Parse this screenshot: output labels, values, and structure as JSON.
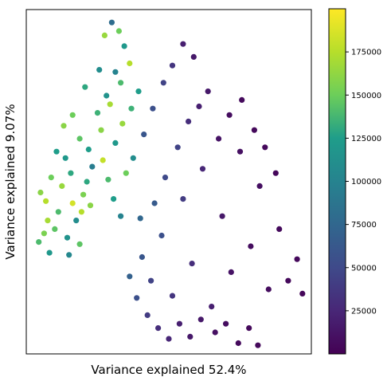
{
  "chart_data": {
    "type": "scatter",
    "xlabel": "Variance explained 52.4%",
    "ylabel": "Variance explained 9.07%",
    "xticks": [],
    "yticks": [],
    "grid": false,
    "legend": "none",
    "colorbar": {
      "colormap": "viridis",
      "range": [
        0,
        200000
      ],
      "ticks": [
        25000,
        50000,
        75000,
        100000,
        125000,
        150000,
        175000
      ],
      "tick_labels": [
        "25000",
        "50000",
        "75000",
        "100000",
        "125000",
        "150000",
        "175000"
      ],
      "stops": [
        "#440154",
        "#482777",
        "#3f4a8a",
        "#31678e",
        "#26838f",
        "#1f9d8a",
        "#6cce5a",
        "#b6de2b",
        "#fee825"
      ]
    },
    "xlim": [
      -4,
      12
    ],
    "ylim": [
      -6,
      10
    ],
    "series": [
      {
        "description": "high-value cluster, dense on left",
        "center": [
          0,
          2
        ],
        "spread": [
          1.4,
          1.6
        ],
        "points": [
          [
            -3.2,
            1.5,
            160000
          ],
          [
            -2.9,
            1.1,
            175000
          ],
          [
            -2.6,
            2.2,
            150000
          ],
          [
            -2.2,
            0.6,
            140000
          ],
          [
            -2.0,
            1.8,
            165000
          ],
          [
            -1.8,
            3.1,
            120000
          ],
          [
            -1.5,
            2.4,
            130000
          ],
          [
            -1.2,
            0.2,
            110000
          ],
          [
            -1.0,
            4.0,
            145000
          ],
          [
            -0.8,
            1.4,
            155000
          ],
          [
            -0.5,
            3.5,
            125000
          ],
          [
            -0.3,
            2.7,
            95000
          ],
          [
            0.0,
            5.2,
            135000
          ],
          [
            0.2,
            4.4,
            160000
          ],
          [
            0.5,
            6.0,
            115000
          ],
          [
            0.7,
            5.6,
            170000
          ],
          [
            1.0,
            7.1,
            100000
          ],
          [
            1.3,
            6.6,
            140000
          ],
          [
            1.5,
            8.3,
            120000
          ],
          [
            1.8,
            7.5,
            175000
          ],
          [
            0.4,
            8.8,
            165000
          ],
          [
            0.8,
            9.4,
            80000
          ],
          [
            1.2,
            9.0,
            150000
          ],
          [
            -2.4,
            -0.2,
            145000
          ],
          [
            -1.7,
            -0.6,
            115000
          ],
          [
            -2.8,
            0.2,
            170000
          ],
          [
            -3.0,
            -0.4,
            155000
          ],
          [
            -1.4,
            1.0,
            185000
          ],
          [
            -0.9,
            0.6,
            175000
          ],
          [
            -0.6,
            2.0,
            130000
          ],
          [
            -2.3,
            3.4,
            125000
          ],
          [
            -1.9,
            4.6,
            160000
          ],
          [
            -1.4,
            5.1,
            150000
          ],
          [
            -0.7,
            6.4,
            130000
          ],
          [
            0.1,
            7.2,
            110000
          ],
          [
            0.3,
            3.0,
            180000
          ],
          [
            0.6,
            2.1,
            140000
          ],
          [
            1.0,
            3.8,
            120000
          ],
          [
            1.4,
            4.7,
            165000
          ],
          [
            1.9,
            5.4,
            135000
          ],
          [
            2.3,
            6.2,
            125000
          ],
          [
            2.0,
            3.1,
            110000
          ],
          [
            1.6,
            2.4,
            150000
          ],
          [
            -3.3,
            -0.8,
            140000
          ],
          [
            -2.7,
            -1.3,
            120000
          ],
          [
            -1.6,
            -1.4,
            105000
          ],
          [
            -1.0,
            -0.9,
            145000
          ],
          [
            -0.4,
            0.9,
            160000
          ],
          [
            0.9,
            1.2,
            125000
          ],
          [
            1.3,
            0.4,
            100000
          ]
        ]
      },
      {
        "description": "low-value spread toward right",
        "center": [
          5,
          -1
        ],
        "spread": [
          3,
          3
        ],
        "points": [
          [
            2.5,
            -1.5,
            60000
          ],
          [
            3.0,
            -2.6,
            45000
          ],
          [
            3.6,
            -0.5,
            55000
          ],
          [
            4.2,
            -3.3,
            35000
          ],
          [
            4.8,
            1.2,
            40000
          ],
          [
            5.3,
            -1.8,
            30000
          ],
          [
            5.9,
            2.6,
            25000
          ],
          [
            6.4,
            -3.8,
            20000
          ],
          [
            7.0,
            0.4,
            15000
          ],
          [
            7.5,
            -2.2,
            12000
          ],
          [
            8.0,
            3.4,
            10000
          ],
          [
            8.6,
            -1.0,
            8000
          ],
          [
            9.1,
            1.8,
            9000
          ],
          [
            9.6,
            -3.0,
            7000
          ],
          [
            10.2,
            -0.2,
            6000
          ],
          [
            10.7,
            -2.6,
            5000
          ],
          [
            11.2,
            -1.6,
            5000
          ],
          [
            11.5,
            -3.2,
            4000
          ],
          [
            3.2,
            1.0,
            65000
          ],
          [
            3.8,
            2.2,
            50000
          ],
          [
            4.5,
            3.6,
            45000
          ],
          [
            5.1,
            4.8,
            30000
          ],
          [
            5.7,
            5.5,
            20000
          ],
          [
            6.2,
            6.2,
            15000
          ],
          [
            6.8,
            4.0,
            12000
          ],
          [
            7.4,
            5.1,
            8000
          ],
          [
            8.1,
            5.8,
            6000
          ],
          [
            8.8,
            4.4,
            5000
          ],
          [
            9.4,
            3.6,
            5000
          ],
          [
            10.0,
            2.4,
            4000
          ],
          [
            2.2,
            -3.4,
            55000
          ],
          [
            2.8,
            -4.2,
            40000
          ],
          [
            3.4,
            -4.8,
            30000
          ],
          [
            4.0,
            -5.3,
            25000
          ],
          [
            4.6,
            -4.6,
            20000
          ],
          [
            5.2,
            -5.2,
            15000
          ],
          [
            5.8,
            -4.4,
            15000
          ],
          [
            6.6,
            -5.0,
            10000
          ],
          [
            7.2,
            -4.6,
            8000
          ],
          [
            7.9,
            -5.5,
            6000
          ],
          [
            8.5,
            -4.8,
            5000
          ],
          [
            9.0,
            -5.6,
            5000
          ],
          [
            2.6,
            4.2,
            60000
          ],
          [
            3.1,
            5.4,
            55000
          ],
          [
            3.7,
            6.6,
            45000
          ],
          [
            4.2,
            7.4,
            35000
          ],
          [
            4.8,
            8.4,
            20000
          ],
          [
            5.4,
            7.8,
            15000
          ],
          [
            1.8,
            -2.4,
            70000
          ],
          [
            2.4,
            0.3,
            75000
          ]
        ]
      }
    ]
  }
}
